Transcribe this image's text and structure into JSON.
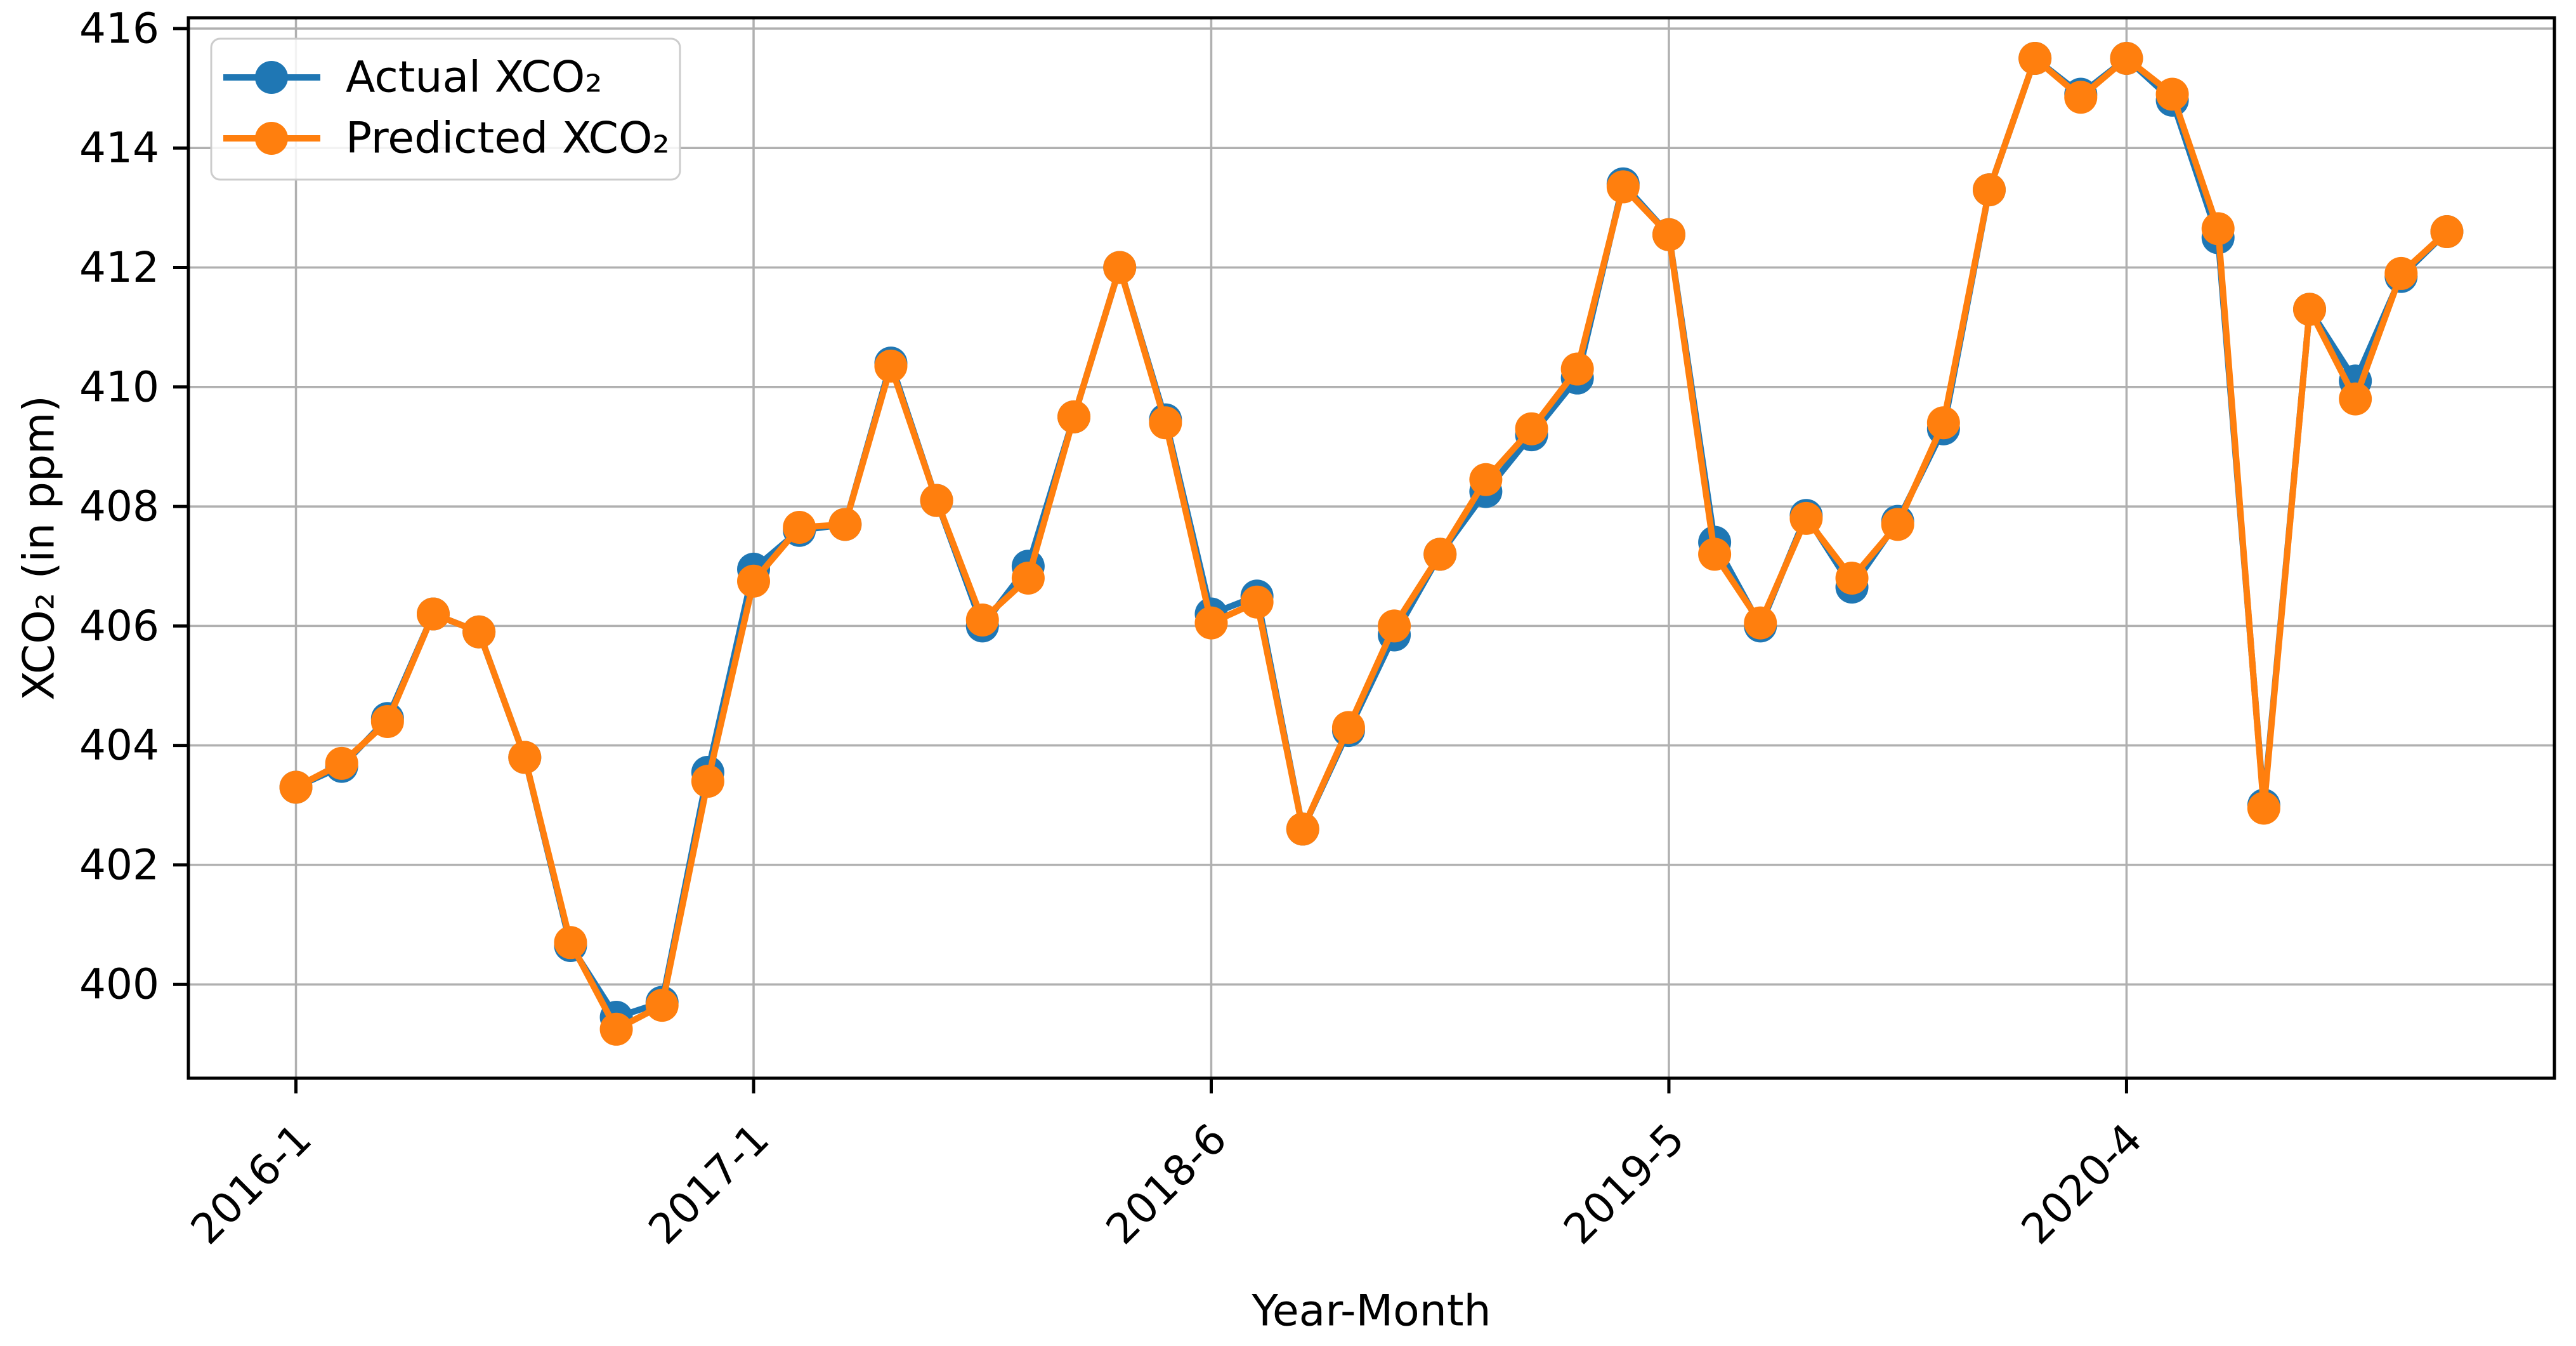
{
  "page": {
    "background": "#ffffff"
  },
  "chart_data": {
    "type": "line",
    "title": "",
    "xlabel": "Year-Month",
    "ylabel": "XCO₂ (in ppm)",
    "grid": true,
    "grid_color": "#b0b0b0",
    "axis_color": "#000000",
    "legend_position": "upper left",
    "x_tick_positions": [
      0,
      10,
      20,
      30,
      40
    ],
    "x_tick_labels": [
      "2016-1",
      "2017-1",
      "2018-6",
      "2019-5",
      "2020-4"
    ],
    "y_ticks": [
      400,
      402,
      404,
      406,
      408,
      410,
      412,
      414,
      416
    ],
    "xlim": [
      -2.35,
      49.35
    ],
    "ylim": [
      398.43,
      416.18
    ],
    "series": [
      {
        "name": "Actual XCO₂",
        "color": "#1f77b4",
        "values": [
          403.3,
          403.65,
          404.45,
          406.2,
          405.9,
          403.8,
          400.65,
          399.45,
          399.7,
          403.55,
          406.95,
          407.6,
          407.7,
          410.4,
          408.1,
          406.0,
          407.0,
          409.5,
          412.0,
          409.45,
          406.2,
          406.5,
          402.6,
          404.25,
          405.85,
          407.2,
          408.25,
          409.2,
          410.15,
          413.4,
          412.55,
          407.4,
          406.0,
          407.85,
          406.65,
          407.75,
          409.3,
          413.3,
          415.5,
          414.9,
          415.5,
          414.8,
          412.5,
          403.0,
          411.3,
          410.1,
          411.85,
          412.6
        ]
      },
      {
        "name": "Predicted XCO₂",
        "color": "#ff7f0e",
        "values": [
          403.3,
          403.7,
          404.4,
          406.2,
          405.9,
          403.8,
          400.7,
          399.25,
          399.65,
          403.4,
          406.75,
          407.65,
          407.7,
          410.35,
          408.1,
          406.1,
          406.8,
          409.5,
          412.0,
          409.4,
          406.05,
          406.4,
          402.6,
          404.3,
          406.0,
          407.2,
          408.45,
          409.3,
          410.3,
          413.35,
          412.55,
          407.2,
          406.05,
          407.8,
          406.8,
          407.7,
          409.4,
          413.3,
          415.5,
          414.85,
          415.5,
          414.9,
          412.65,
          402.95,
          411.3,
          409.8,
          411.9,
          412.6
        ]
      }
    ]
  }
}
